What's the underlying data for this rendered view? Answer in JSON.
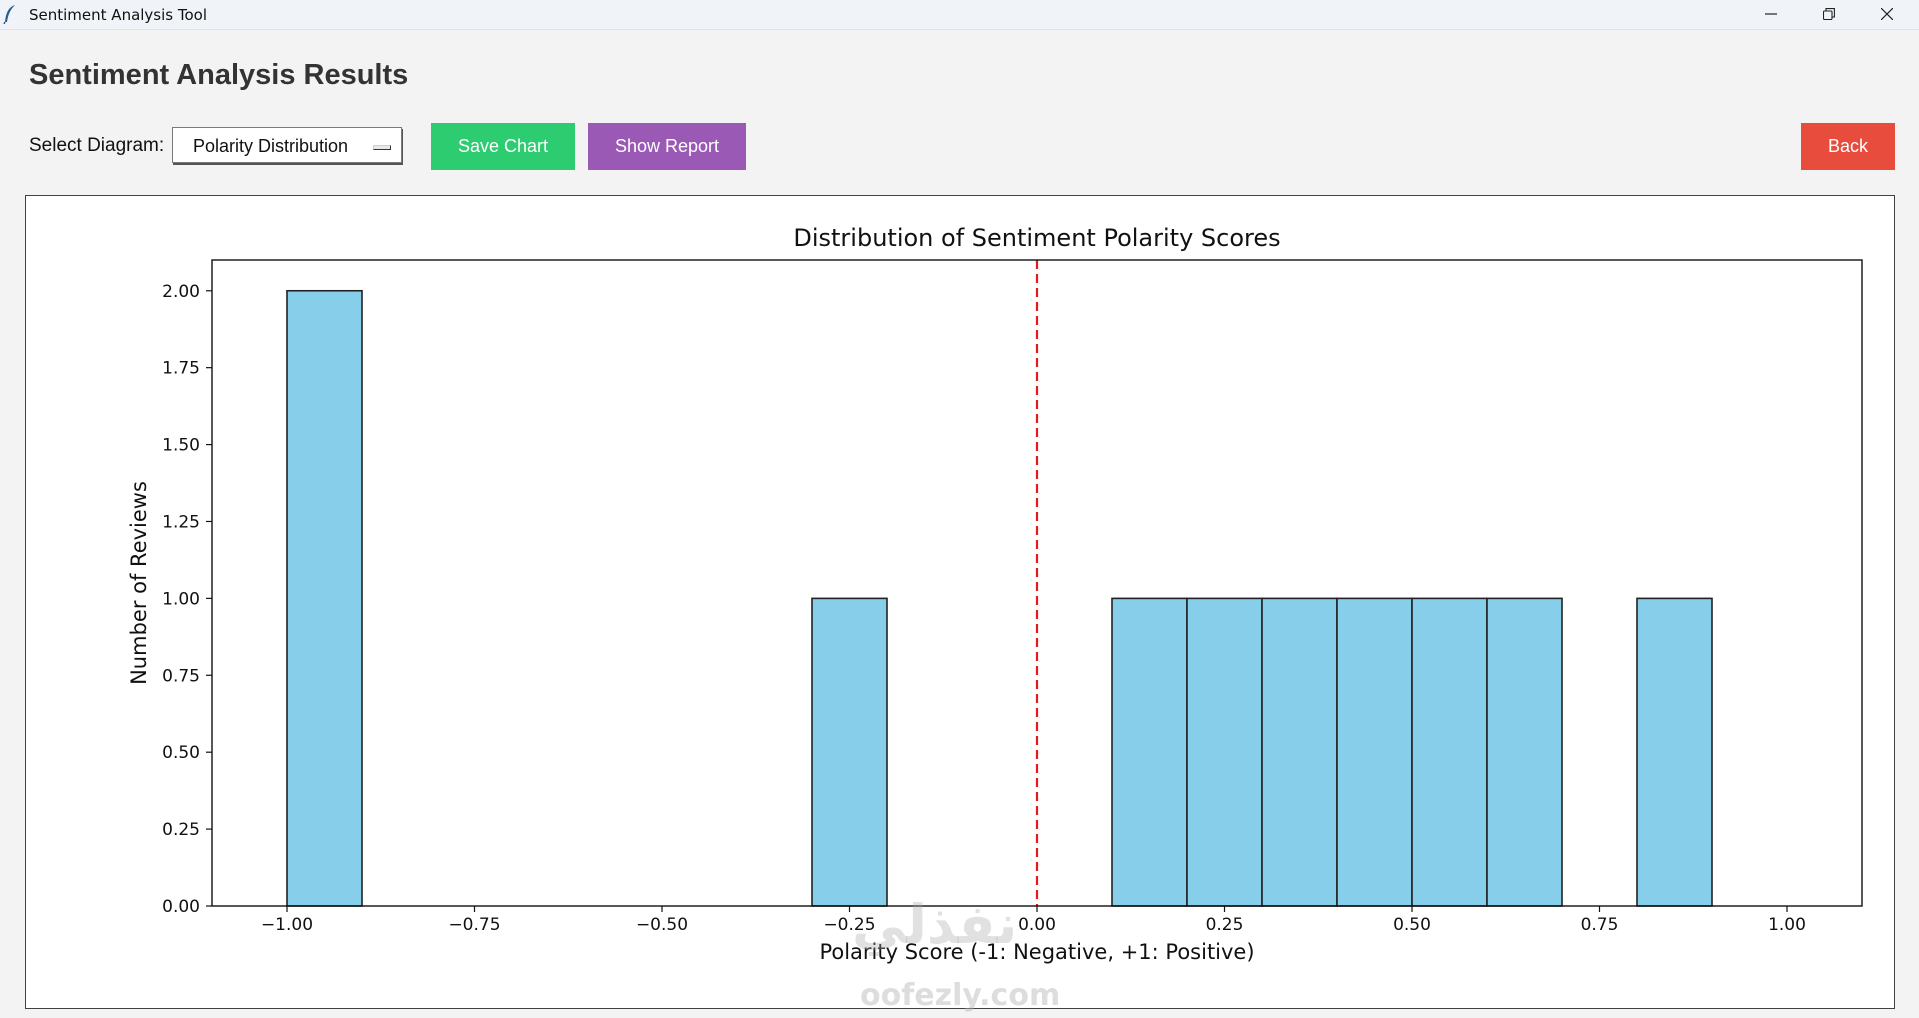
{
  "window": {
    "title": "Sentiment Analysis Tool",
    "icon": "feather-icon",
    "controls": [
      "minimize-icon",
      "restore-icon",
      "close-icon"
    ]
  },
  "page": {
    "heading": "Sentiment Analysis Results"
  },
  "toolbar": {
    "select_label": "Select Diagram:",
    "selected_diagram": "Polarity Distribution",
    "save_label": "Save Chart",
    "report_label": "Show Report",
    "back_label": "Back"
  },
  "colors": {
    "save": "#2ecc71",
    "report": "#9b59b6",
    "back": "#e74c3c",
    "bar_fill": "#87ceeb",
    "bar_edge": "#222222",
    "reference_line": "#e41a1c"
  },
  "chart_data": {
    "type": "bar",
    "title": "Distribution of Sentiment Polarity Scores",
    "xlabel": "Polarity Score (-1: Negative, +1: Positive)",
    "ylabel": "Number of Reviews",
    "xlim": [
      -1.1,
      1.1
    ],
    "ylim": [
      0,
      2.1
    ],
    "xticks": [
      -1.0,
      -0.75,
      -0.5,
      -0.25,
      0.0,
      0.25,
      0.5,
      0.75,
      1.0
    ],
    "xtick_labels": [
      "−1.00",
      "−0.75",
      "−0.50",
      "−0.25",
      "0.00",
      "0.25",
      "0.50",
      "0.75",
      "1.00"
    ],
    "yticks": [
      0.0,
      0.25,
      0.5,
      0.75,
      1.0,
      1.25,
      1.5,
      1.75,
      2.0
    ],
    "ytick_labels": [
      "0.00",
      "0.25",
      "0.50",
      "0.75",
      "1.00",
      "1.25",
      "1.50",
      "1.75",
      "2.00"
    ],
    "bins": [
      {
        "start": -1.0,
        "end": -0.9,
        "count": 2
      },
      {
        "start": -0.3,
        "end": -0.2,
        "count": 1
      },
      {
        "start": 0.1,
        "end": 0.2,
        "count": 1
      },
      {
        "start": 0.2,
        "end": 0.3,
        "count": 1
      },
      {
        "start": 0.3,
        "end": 0.4,
        "count": 1
      },
      {
        "start": 0.4,
        "end": 0.5,
        "count": 1
      },
      {
        "start": 0.5,
        "end": 0.6,
        "count": 1
      },
      {
        "start": 0.6,
        "end": 0.7,
        "count": 1
      },
      {
        "start": 0.8,
        "end": 0.9,
        "count": 1
      }
    ],
    "reference_line": {
      "x": 0.0,
      "style": "dashed"
    },
    "grid": false,
    "legend": "none"
  },
  "watermark": {
    "arabic": "نفذلي",
    "text": "oofezly.com"
  }
}
